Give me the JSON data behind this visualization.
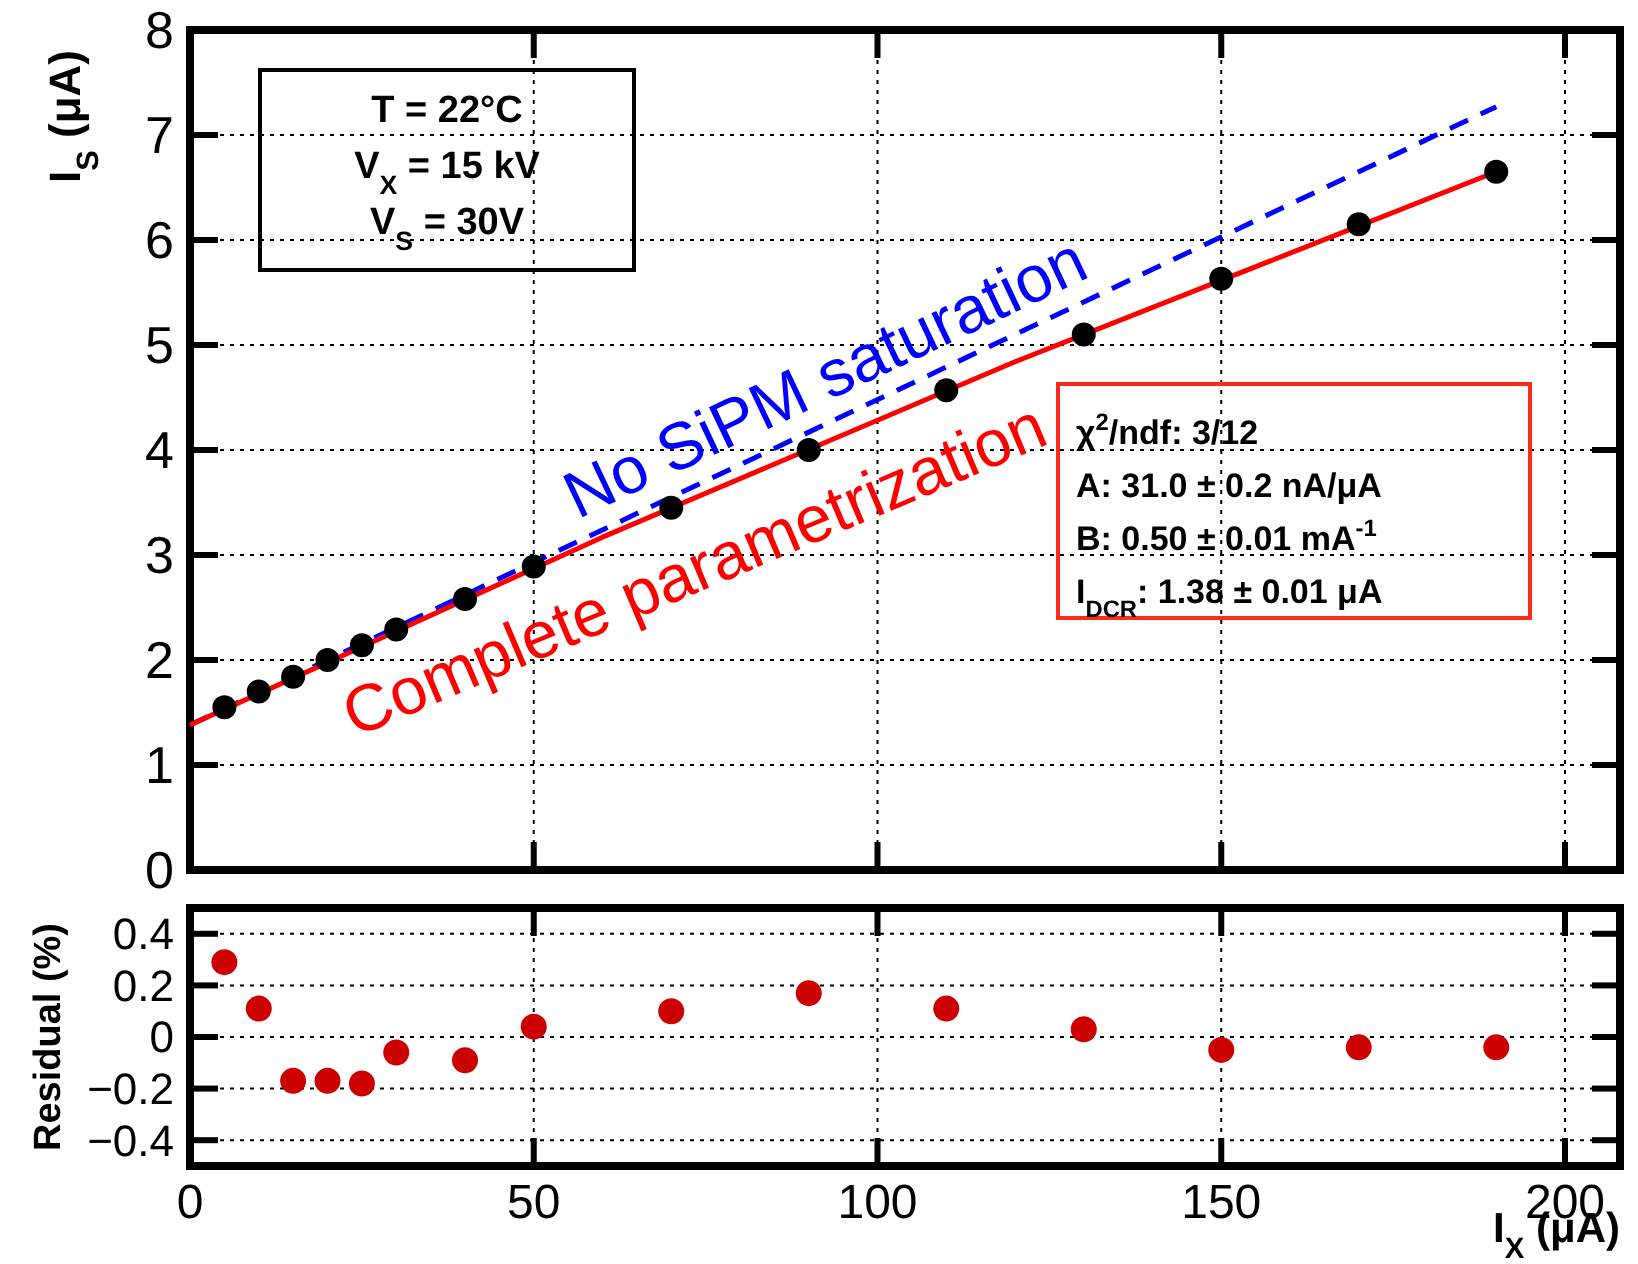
{
  "chart_data": [
    {
      "type": "scatter",
      "ylabel": "I$_{S}$ (μA)",
      "xlim": [
        0,
        208
      ],
      "xticks": [
        0,
        50,
        100,
        150,
        200
      ],
      "ylim": [
        0,
        8
      ],
      "yticks": [
        0,
        1,
        2,
        3,
        4,
        5,
        6,
        7,
        8
      ],
      "tick_labels": "y",
      "grid": true,
      "annotations": [
        "T = 22°C",
        "V$_{X}$ = 15 kV",
        "V$_{S}$ = 30V",
        "χ$^{2}$/ndf: 3/12",
        "A: 31.0 ± 0.2 nA/μA",
        "B: 0.50 ± 0.01 mA$^{-1}$",
        "I$_{DCR}$: 1.38 ± 0.01 μA"
      ],
      "series": [
        {
          "type": "line",
          "name": "No SiPM saturation",
          "color": "#0000ff",
          "line_style": "dashed",
          "marker": "none",
          "x": [
            0,
            190
          ],
          "values": [
            1.38,
            7.27
          ]
        },
        {
          "type": "line",
          "name": "Complete parametrization",
          "color": "#ff0000",
          "line_style": "solid",
          "marker": "none",
          "x": [
            0,
            60,
            120,
            190
          ],
          "values": [
            1.38,
            3.17,
            4.84,
            6.65
          ]
        },
        {
          "color": "#000000",
          "marker": "circle",
          "x": [
            5,
            10,
            15,
            20,
            25,
            30,
            40,
            50,
            70,
            90,
            110,
            130,
            150,
            170,
            190
          ],
          "values": [
            1.55,
            1.7,
            1.84,
            2.0,
            2.14,
            2.29,
            2.58,
            2.89,
            3.45,
            4.0,
            4.57,
            5.1,
            5.63,
            6.15,
            6.65
          ]
        }
      ]
    },
    {
      "type": "scatter",
      "xlabel": "I$_{X}$ (μA)",
      "ylabel": "Residual (%)",
      "xlim": [
        0,
        208
      ],
      "xticks": [
        0,
        50,
        100,
        150,
        200
      ],
      "ylim": [
        -0.5,
        0.5
      ],
      "yticks": [
        {
          "value": -0.4,
          "label": "−0.4"
        },
        {
          "value": -0.2,
          "label": "−0.2"
        },
        0,
        0.2,
        0.4
      ],
      "grid": true,
      "series": [
        {
          "color": "#cc0000",
          "marker": "circle",
          "x": [
            5,
            10,
            15,
            20,
            25,
            30,
            40,
            50,
            70,
            90,
            110,
            130,
            150,
            170,
            190
          ],
          "values": [
            0.29,
            0.11,
            -0.17,
            -0.17,
            -0.18,
            -0.06,
            -0.09,
            0.04,
            0.1,
            0.17,
            0.11,
            0.03,
            -0.05,
            -0.04,
            -0.04
          ]
        }
      ]
    }
  ]
}
